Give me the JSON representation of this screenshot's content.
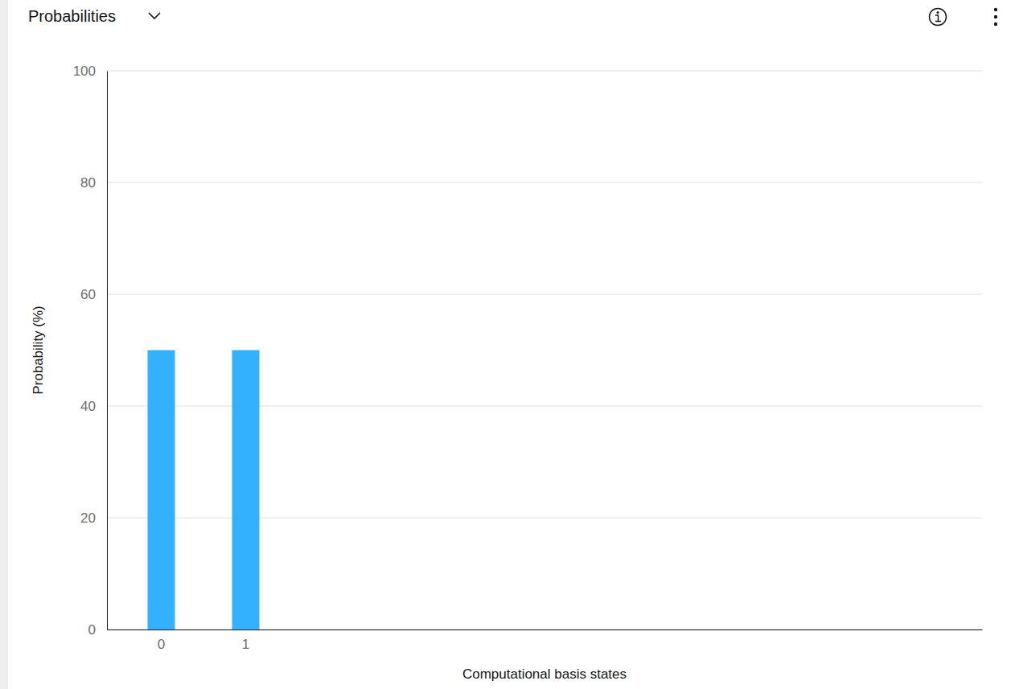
{
  "chart_data": {
    "type": "bar",
    "title": "Probabilities",
    "categories": [
      "0",
      "1"
    ],
    "values": [
      50,
      50
    ],
    "color": "#33b1ff",
    "x_label": "Computational basis states",
    "y_label": "Probability (%)",
    "ylim": [
      0,
      100
    ],
    "yticks": [
      0,
      20,
      40,
      60,
      80,
      100
    ],
    "grid": true
  }
}
